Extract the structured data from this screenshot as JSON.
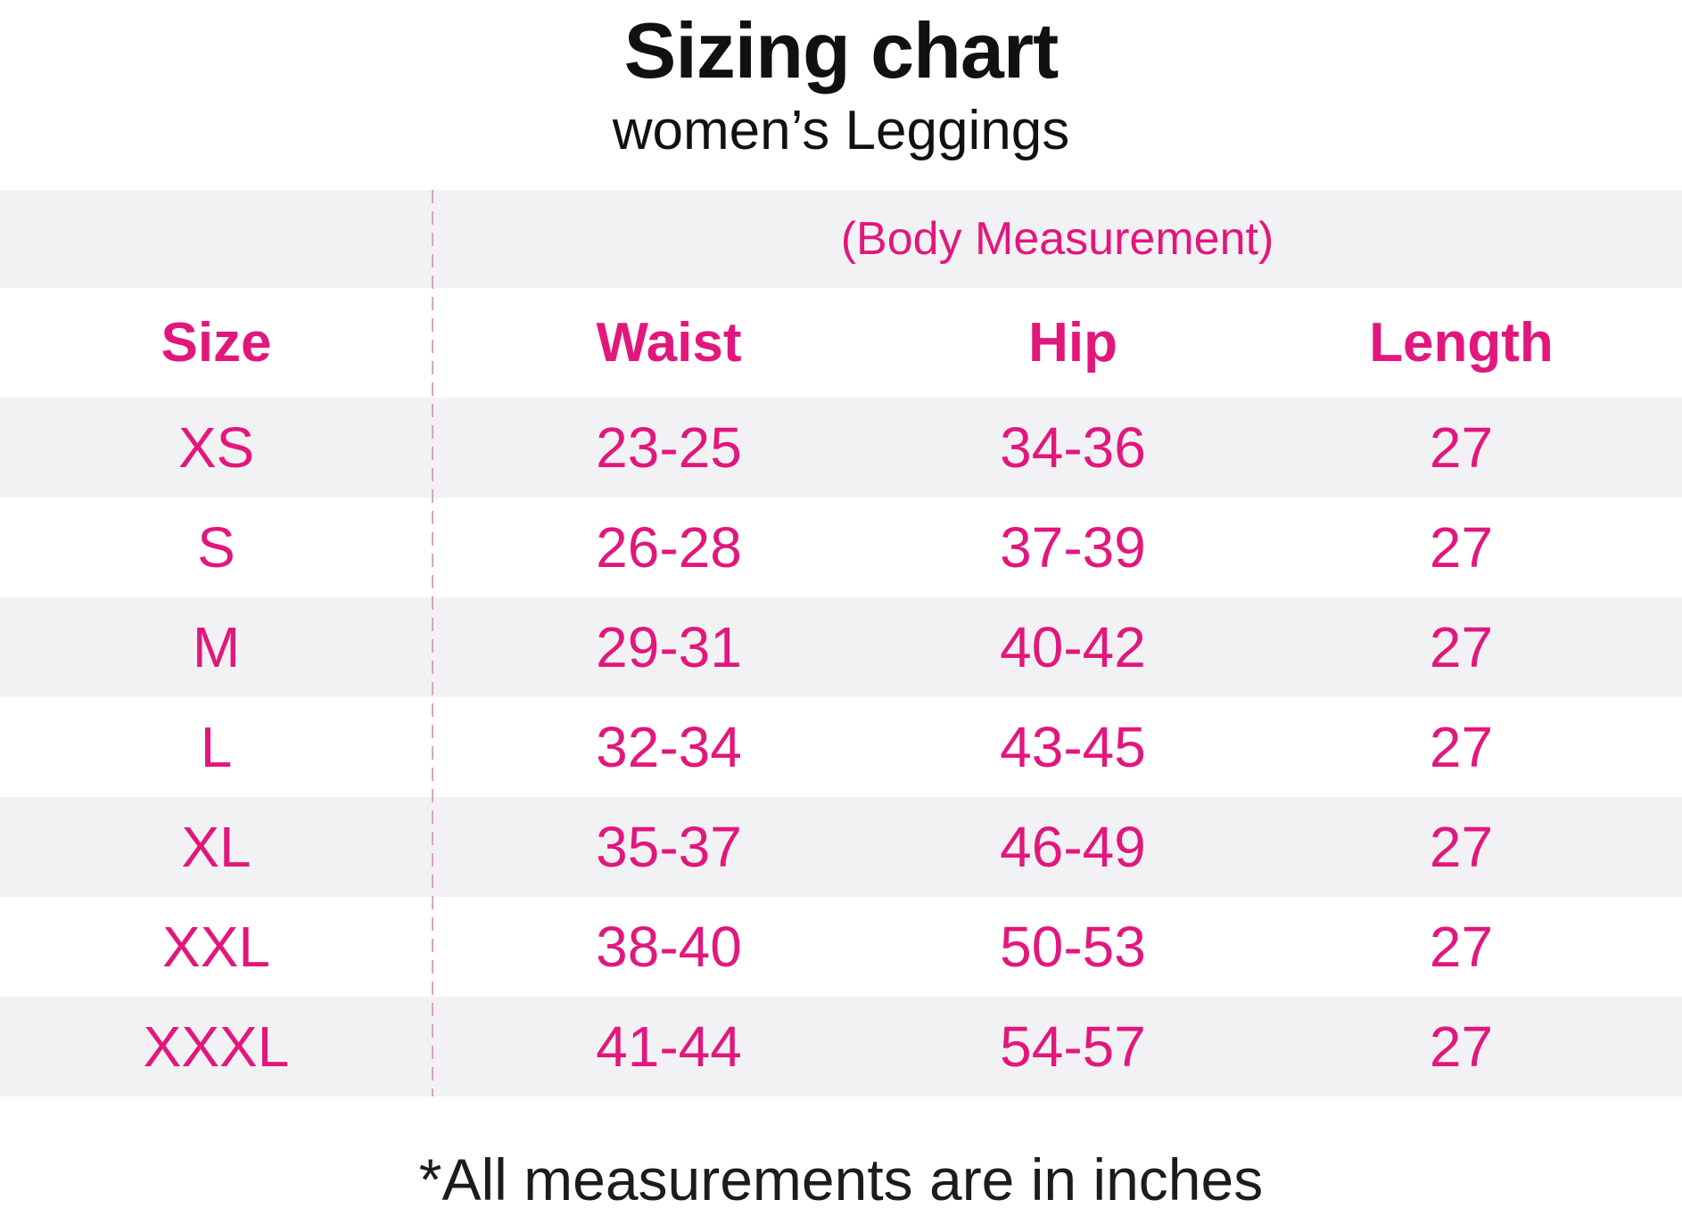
{
  "header": {
    "title": "Sizing chart",
    "subtitle": "women’s Leggings"
  },
  "table": {
    "group_header": "(Body Measurement)",
    "columns": [
      "Size",
      "Waist",
      "Hip",
      "Length"
    ],
    "rows": [
      {
        "size": "XS",
        "waist": "23-25",
        "hip": "34-36",
        "length": "27"
      },
      {
        "size": "S",
        "waist": "26-28",
        "hip": "37-39",
        "length": "27"
      },
      {
        "size": "M",
        "waist": "29-31",
        "hip": "40-42",
        "length": "27"
      },
      {
        "size": "L",
        "waist": "32-34",
        "hip": "43-45",
        "length": "27"
      },
      {
        "size": "XL",
        "waist": "35-37",
        "hip": "46-49",
        "length": "27"
      },
      {
        "size": "XXL",
        "waist": "38-40",
        "hip": "50-53",
        "length": "27"
      },
      {
        "size": "XXXL",
        "waist": "41-44",
        "hip": "54-57",
        "length": "27"
      }
    ]
  },
  "footer": {
    "note": "*All measurements are in inches"
  },
  "colors": {
    "accent_pink": "#e2177c",
    "stripe_gray": "#f2f2f4",
    "divider_pink": "#d9a4bf",
    "text_black": "#1c1c1c"
  }
}
